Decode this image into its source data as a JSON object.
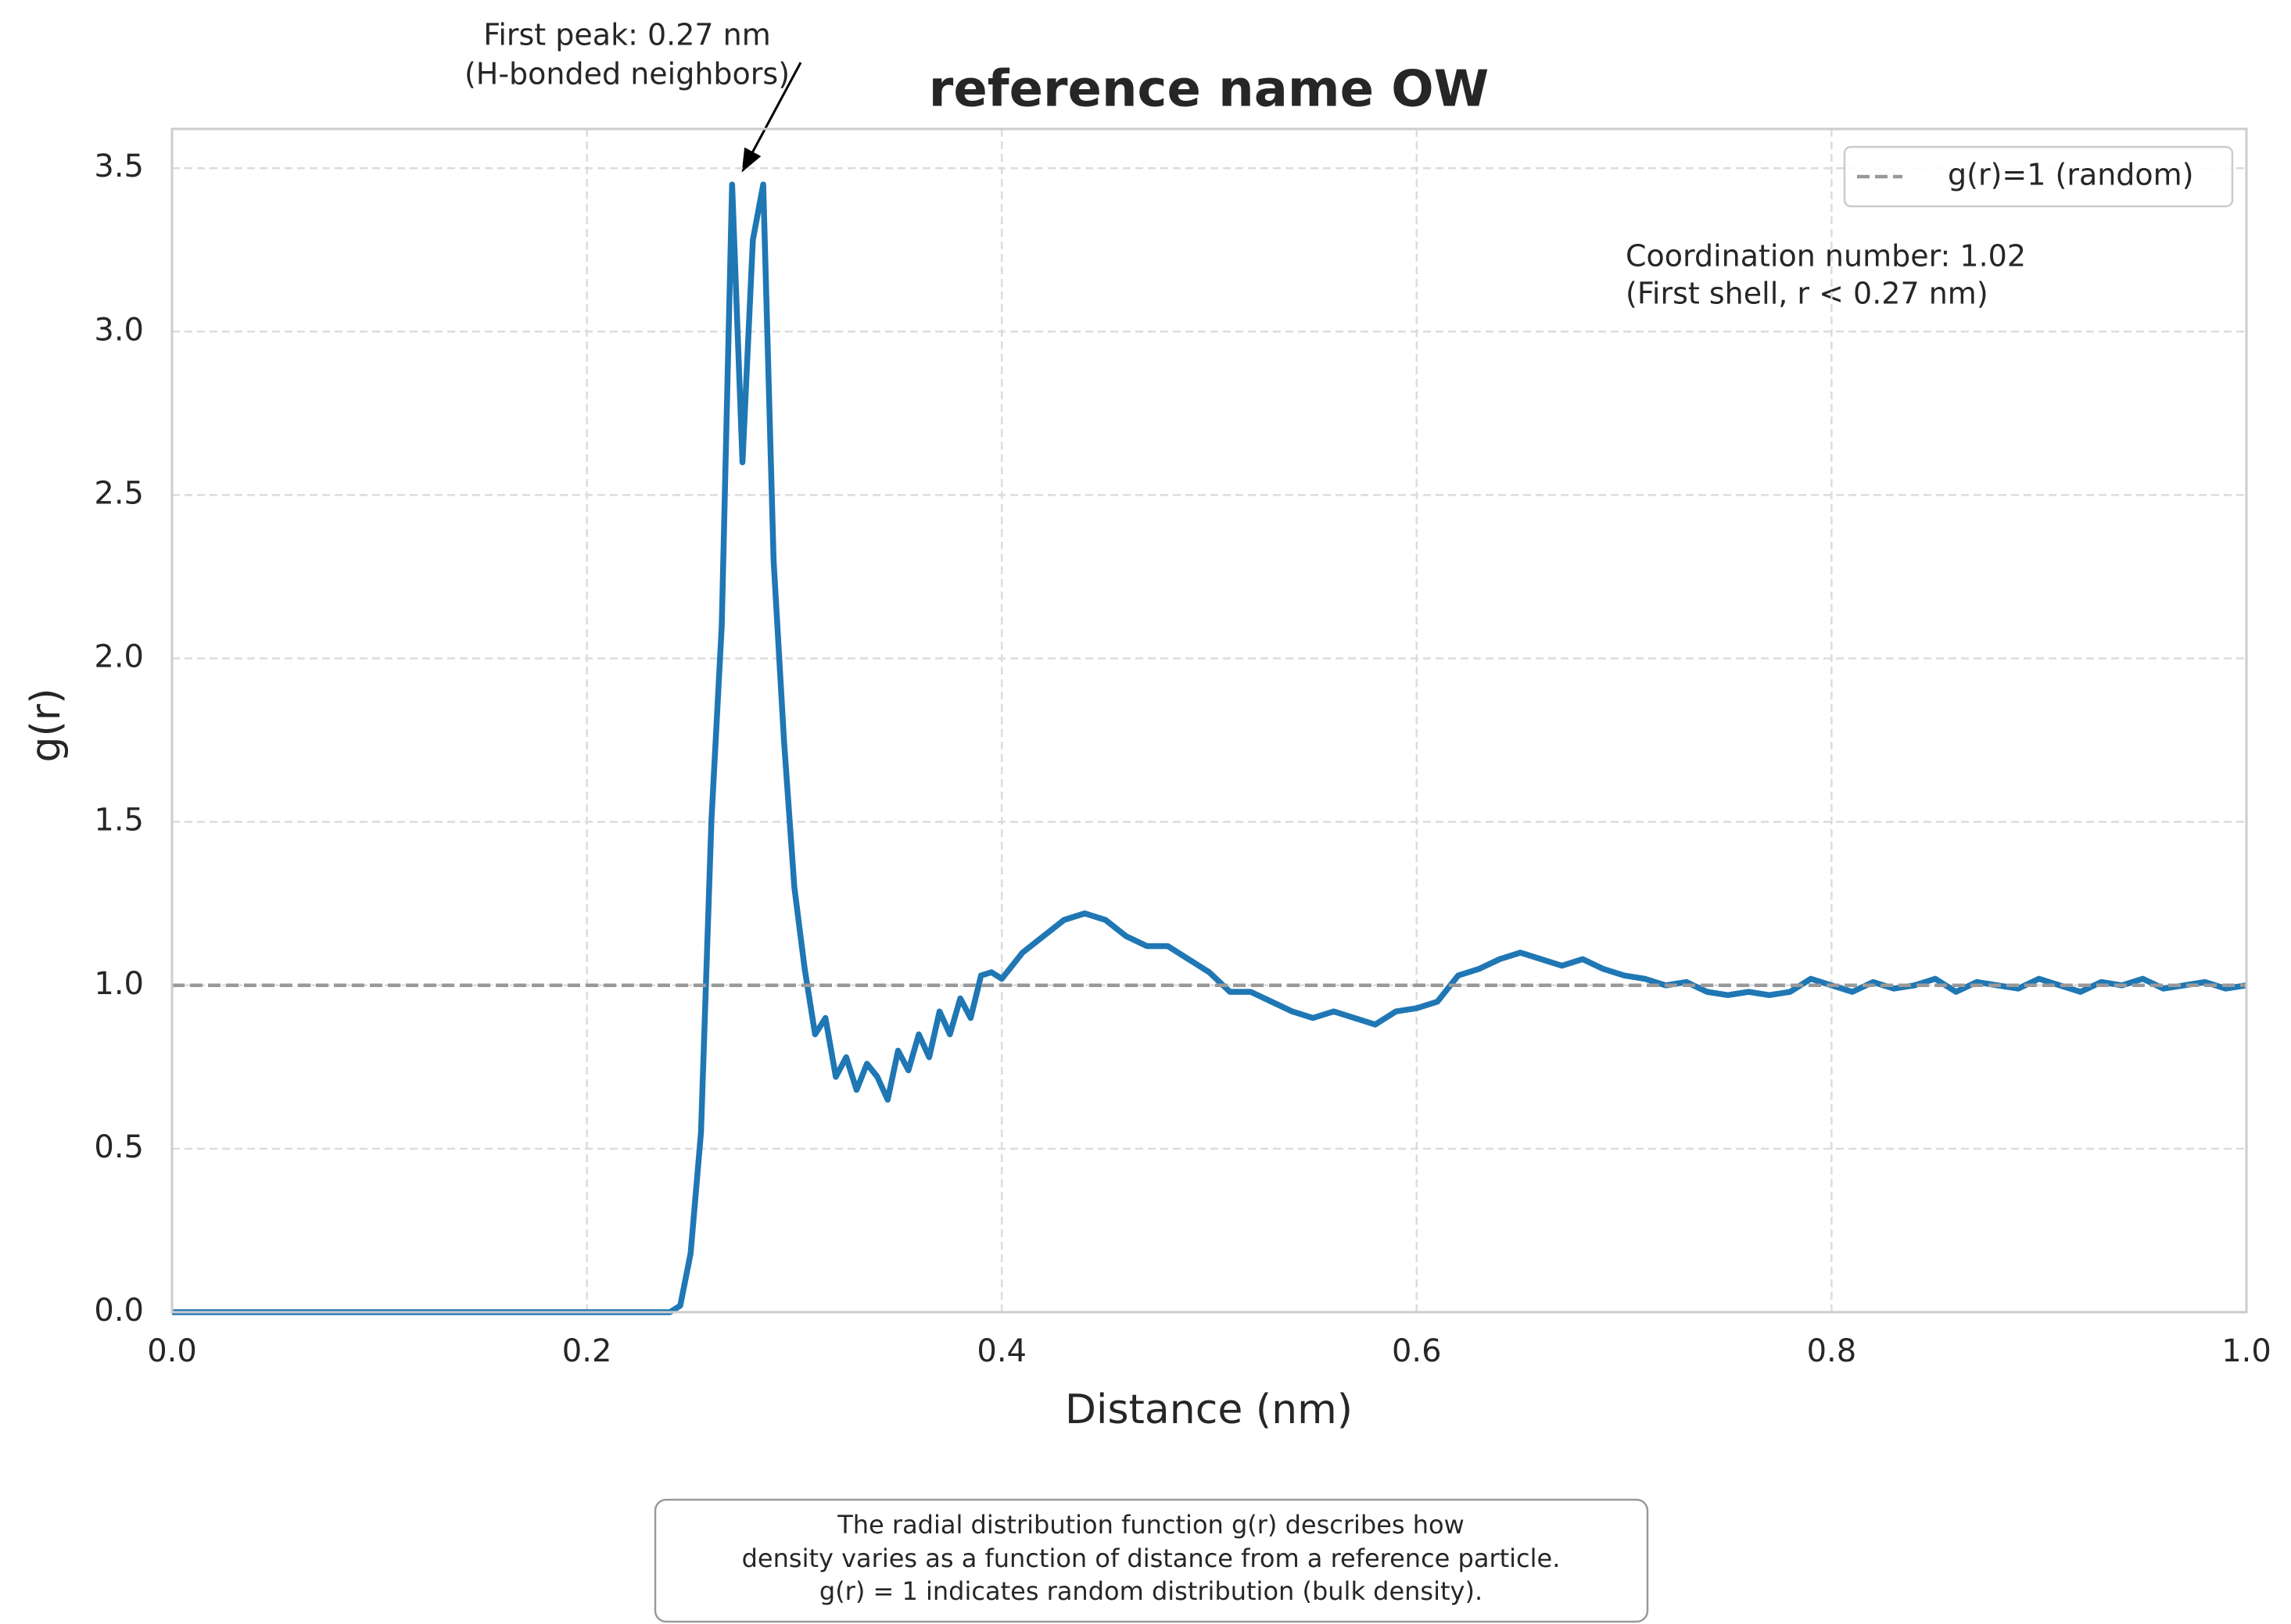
{
  "chart_data": {
    "type": "line",
    "title": "reference name OW",
    "x_label": "Distance (nm)",
    "y_label": "g(r)",
    "xlim": [
      0,
      1
    ],
    "ylim": [
      0,
      3.62
    ],
    "xticks": [
      {
        "value": 0,
        "label": "0.0"
      },
      0.2,
      0.4,
      0.6,
      0.8,
      {
        "value": 1,
        "label": "1.0"
      }
    ],
    "yticks": [
      {
        "value": 0,
        "label": "0.0"
      },
      0.5,
      {
        "value": 1,
        "label": "1.0"
      },
      1.5,
      {
        "value": 2,
        "label": "2.0"
      },
      2.5,
      {
        "value": 3,
        "label": "3.0"
      },
      3.5
    ],
    "grid": true,
    "legend": "upper right",
    "x": [
      0,
      0.05,
      0.1,
      0.15,
      0.2,
      0.24,
      0.245,
      0.25,
      0.255,
      0.26,
      0.265,
      0.27,
      0.275,
      0.28,
      0.285,
      0.29,
      0.295,
      0.3,
      0.305,
      0.31,
      0.315,
      0.32,
      0.325,
      0.33,
      0.335,
      0.34,
      0.345,
      0.35,
      0.355,
      0.36,
      0.365,
      0.37,
      0.375,
      0.38,
      0.385,
      0.39,
      0.395,
      0.4,
      0.41,
      0.42,
      0.43,
      0.44,
      0.45,
      0.46,
      0.47,
      0.48,
      0.49,
      0.5,
      0.51,
      0.52,
      0.53,
      0.54,
      0.55,
      0.56,
      0.57,
      0.58,
      0.59,
      0.6,
      0.61,
      0.62,
      0.63,
      0.64,
      0.65,
      0.66,
      0.67,
      0.68,
      0.69,
      0.7,
      0.71,
      0.72,
      0.73,
      0.74,
      0.75,
      0.76,
      0.77,
      0.78,
      0.79,
      0.8,
      0.81,
      0.82,
      0.83,
      0.84,
      0.85,
      0.86,
      0.87,
      0.88,
      0.89,
      0.9,
      0.91,
      0.92,
      0.93,
      0.94,
      0.95,
      0.96,
      0.97,
      0.98,
      0.99,
      1
    ],
    "series": [
      {
        "name": "g(r)",
        "color": "#1f77b4",
        "values": [
          0,
          0,
          0,
          0,
          0,
          0,
          0.02,
          0.18,
          0.55,
          1.5,
          2.1,
          3.45,
          2.6,
          3.28,
          3.45,
          2.3,
          1.75,
          1.3,
          1.05,
          0.85,
          0.9,
          0.72,
          0.78,
          0.68,
          0.76,
          0.72,
          0.65,
          0.8,
          0.74,
          0.85,
          0.78,
          0.92,
          0.85,
          0.96,
          0.9,
          1.03,
          1.04,
          1.02,
          1.1,
          1.15,
          1.2,
          1.22,
          1.2,
          1.15,
          1.12,
          1.12,
          1.08,
          1.04,
          0.98,
          0.98,
          0.95,
          0.92,
          0.9,
          0.92,
          0.9,
          0.88,
          0.92,
          0.93,
          0.95,
          1.03,
          1.05,
          1.08,
          1.1,
          1.08,
          1.06,
          1.08,
          1.05,
          1.03,
          1.02,
          1.0,
          1.01,
          0.98,
          0.97,
          0.98,
          0.97,
          0.98,
          1.02,
          1.0,
          0.98,
          1.01,
          0.99,
          1.0,
          1.02,
          0.98,
          1.01,
          1.0,
          0.99,
          1.02,
          1.0,
          0.98,
          1.01,
          1.0,
          1.02,
          0.99,
          1.0,
          1.01,
          0.99,
          1.0
        ]
      }
    ],
    "reference_line": {
      "y": 1,
      "label": "g(r)=1 (random)",
      "color": "#999999"
    },
    "peak_annotation": [
      "First peak: 0.27 nm",
      "(H-bonded neighbors)"
    ],
    "coordination_note": [
      "Coordination number: 1.02",
      "(First shell, r < 0.27 nm)"
    ],
    "caption": [
      "The radial distribution function g(r) describes how",
      "density varies as a function of distance from a reference particle.",
      "g(r) = 1 indicates random distribution (bulk density)."
    ]
  }
}
